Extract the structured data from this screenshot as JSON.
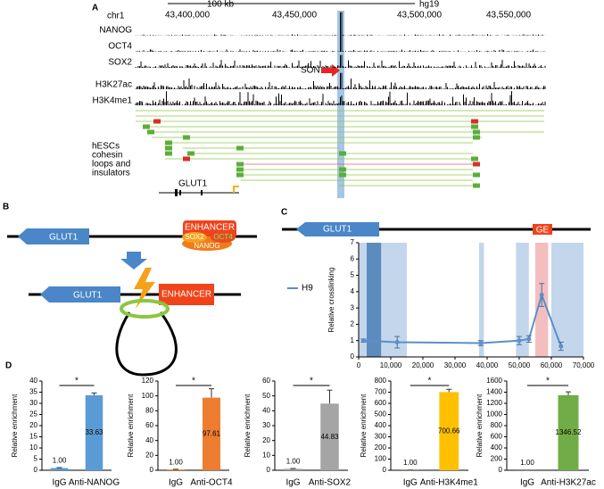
{
  "panel_a": {
    "label": "A",
    "scale": "100 kb",
    "assembly": "hg19",
    "chromosome": "chr1",
    "coordinates": [
      "43,400,000",
      "43,450,000",
      "43,500,000",
      "43,550,000"
    ],
    "tracks": [
      "NANOG",
      "OCT4",
      "SOX2",
      "H3K27ac",
      "H3K4me1"
    ],
    "son": "SON",
    "loops_label": [
      "hESCs",
      "cohesin",
      "loops and",
      "insulators"
    ],
    "gene": "GLUT1"
  },
  "panel_b": {
    "label": "B",
    "gene": "GLUT1",
    "enhancer": "ENHANCER",
    "factors": [
      "SOX2",
      "OCT4",
      "NANOG"
    ]
  },
  "panel_c": {
    "label": "C",
    "gene": "GLUT1",
    "element": "GE"
  },
  "panel_d": {
    "label": "D"
  },
  "chart_data": [
    {
      "type": "line",
      "ylabel": "Relative crosslinking",
      "xlim": [
        0,
        70000
      ],
      "ylim": [
        0,
        7
      ],
      "xticks": [
        0,
        {
          "value": 10000,
          "label": "10,000"
        },
        {
          "value": 20000,
          "label": "20,000"
        },
        {
          "value": 30000,
          "label": "30,000"
        },
        {
          "value": 40000,
          "label": "40,000"
        },
        {
          "value": 50000,
          "label": "50,000"
        },
        {
          "value": 60000,
          "label": "60,000"
        },
        {
          "value": 70000,
          "label": "70,000"
        }
      ],
      "yticks": [
        0,
        1,
        2,
        3,
        4,
        5,
        6,
        7
      ],
      "legend_position": "left",
      "shaded_regions": [
        {
          "x0": 0,
          "x1": 15000,
          "color": "#b8cfe8"
        },
        {
          "x0": 2500,
          "x1": 7000,
          "color": "#4a7fb5"
        },
        {
          "x0": 37500,
          "x1": 39000,
          "color": "#b8cfe8"
        },
        {
          "x0": 49000,
          "x1": 53000,
          "color": "#b8cfe8"
        },
        {
          "x0": 55000,
          "x1": 59000,
          "color": "#f2b3b3"
        },
        {
          "x0": 60000,
          "x1": 70000,
          "color": "#b8cfe8"
        }
      ],
      "x": [
        1500,
        12000,
        38000,
        50000,
        53000,
        57000,
        63000
      ],
      "series": [
        {
          "name": "H9",
          "color": "#5b8fc9",
          "values": [
            1.0,
            0.9,
            0.85,
            1.0,
            1.1,
            3.8,
            0.65
          ],
          "errors": [
            0.1,
            0.35,
            0.15,
            0.25,
            0.2,
            0.7,
            0.25
          ]
        }
      ]
    },
    {
      "type": "bar",
      "ylabel": "Relative enrichment",
      "categories": [
        "IgG",
        "Anti-NANOG"
      ],
      "values": [
        1.0,
        33.63
      ],
      "value_labels": [
        "1.00",
        "33.63"
      ],
      "errors": [
        0.2,
        1
      ],
      "color": "#5b9bd5",
      "ylim": [
        0,
        40
      ],
      "yticks": [
        0,
        5,
        10,
        15,
        20,
        25,
        30,
        35,
        40
      ],
      "significance": "*"
    },
    {
      "type": "bar",
      "ylabel": "Relative enrichment",
      "categories": [
        "IgG",
        "Anti-OCT4"
      ],
      "values": [
        1.0,
        97.61
      ],
      "value_labels": [
        "1.00",
        "97.61"
      ],
      "errors": [
        0.3,
        12
      ],
      "color": "#ed7d31",
      "ylim": [
        0,
        120
      ],
      "yticks": [
        0,
        20,
        40,
        60,
        80,
        100,
        120
      ],
      "significance": "*"
    },
    {
      "type": "bar",
      "ylabel": "Relative enrichment",
      "categories": [
        "IgG",
        "Anti-SOX2"
      ],
      "values": [
        1.0,
        44.83
      ],
      "value_labels": [
        "1.00",
        "44.83"
      ],
      "errors": [
        0.2,
        9
      ],
      "color": "#a5a5a5",
      "ylim": [
        0,
        60
      ],
      "yticks": [
        0,
        10,
        20,
        30,
        40,
        50,
        60
      ],
      "significance": "*"
    },
    {
      "type": "bar",
      "ylabel": "Relative enrichment",
      "categories": [
        "IgG",
        "Anti-H3K4me1"
      ],
      "values": [
        1.0,
        700.66
      ],
      "value_labels": [
        "1.00",
        "700.66"
      ],
      "errors": [
        1,
        25
      ],
      "color": "#ffc000",
      "ylim": [
        0,
        800
      ],
      "yticks": [
        0,
        100,
        200,
        300,
        400,
        500,
        600,
        700,
        800
      ],
      "significance": "*"
    },
    {
      "type": "bar",
      "ylabel": "Relative enrichment",
      "categories": [
        "IgG",
        "Anti-H3K27ac"
      ],
      "values": [
        1.0,
        1346.52
      ],
      "value_labels": [
        "1.00",
        "1346.52"
      ],
      "errors": [
        2,
        60
      ],
      "color": "#70ad47",
      "ylim": [
        0,
        1600
      ],
      "yticks": [
        0,
        200,
        400,
        600,
        800,
        1000,
        1200,
        1400,
        1600
      ],
      "significance": "*"
    }
  ]
}
